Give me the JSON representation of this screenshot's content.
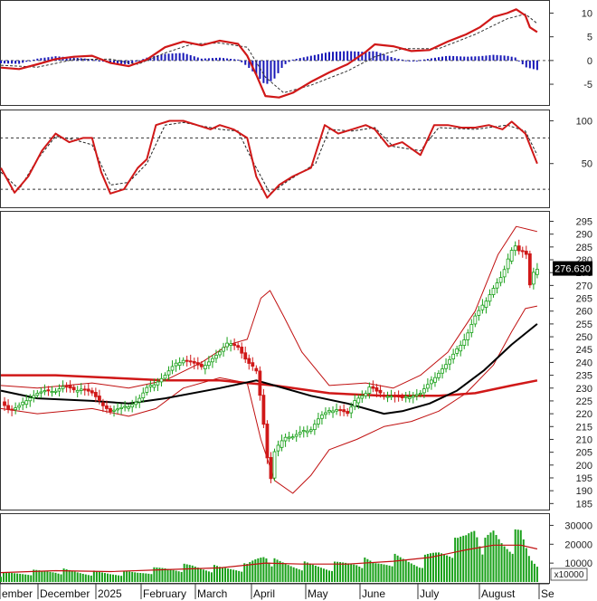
{
  "chart_data": [
    {
      "panel": "macd",
      "type": "line",
      "y_ticks": [
        10,
        5,
        0,
        -5
      ],
      "ylim": [
        -9,
        12
      ],
      "colors": {
        "macd": "#d01818",
        "signal": "#c01010",
        "hist_pos": "#1818b8",
        "hist_neg": "#1818b8"
      },
      "macd": [
        [
          0,
          -1.5
        ],
        [
          20,
          -1.8
        ],
        [
          40,
          -0.8
        ],
        [
          60,
          0.3
        ],
        [
          80,
          0.8
        ],
        [
          100,
          1.0
        ],
        [
          120,
          -0.5
        ],
        [
          140,
          -1.2
        ],
        [
          160,
          0.2
        ],
        [
          180,
          2.8
        ],
        [
          200,
          4.0
        ],
        [
          220,
          3.2
        ],
        [
          240,
          4.2
        ],
        [
          260,
          3.5
        ],
        [
          270,
          1.0
        ],
        [
          280,
          -3.0
        ],
        [
          290,
          -7.5
        ],
        [
          305,
          -7.8
        ],
        [
          320,
          -6.8
        ],
        [
          340,
          -4.5
        ],
        [
          360,
          -2.5
        ],
        [
          380,
          -0.8
        ],
        [
          400,
          1.8
        ],
        [
          410,
          3.4
        ],
        [
          430,
          3.0
        ],
        [
          450,
          2.0
        ],
        [
          470,
          2.2
        ],
        [
          490,
          4.0
        ],
        [
          510,
          5.5
        ],
        [
          525,
          7.0
        ],
        [
          540,
          9.2
        ],
        [
          555,
          10.0
        ],
        [
          565,
          10.8
        ],
        [
          575,
          9.5
        ],
        [
          580,
          7.0
        ],
        [
          588,
          6.0
        ]
      ],
      "signal": [
        [
          0,
          -1.0
        ],
        [
          40,
          -1.4
        ],
        [
          80,
          0.2
        ],
        [
          120,
          0.3
        ],
        [
          150,
          -0.8
        ],
        [
          180,
          1.6
        ],
        [
          210,
          3.5
        ],
        [
          240,
          3.7
        ],
        [
          270,
          2.8
        ],
        [
          290,
          -3.5
        ],
        [
          310,
          -6.8
        ],
        [
          340,
          -5.2
        ],
        [
          380,
          -2.2
        ],
        [
          410,
          0.8
        ],
        [
          440,
          2.5
        ],
        [
          480,
          2.5
        ],
        [
          520,
          5.5
        ],
        [
          555,
          8.8
        ],
        [
          575,
          9.8
        ],
        [
          588,
          7.8
        ]
      ],
      "histogram": [
        [
          0,
          -0.6
        ],
        [
          20,
          -0.7
        ],
        [
          40,
          0.4
        ],
        [
          60,
          0.9
        ],
        [
          80,
          0.6
        ],
        [
          100,
          0.3
        ],
        [
          120,
          -0.6
        ],
        [
          140,
          -0.8
        ],
        [
          160,
          0.6
        ],
        [
          180,
          1.4
        ],
        [
          200,
          1.6
        ],
        [
          220,
          0.4
        ],
        [
          240,
          0.6
        ],
        [
          260,
          0.2
        ],
        [
          270,
          -1.2
        ],
        [
          280,
          -3.0
        ],
        [
          290,
          -5.2
        ],
        [
          300,
          -3.8
        ],
        [
          310,
          -1.0
        ],
        [
          320,
          0.2
        ],
        [
          340,
          1.0
        ],
        [
          360,
          1.8
        ],
        [
          380,
          2.0
        ],
        [
          400,
          1.8
        ],
        [
          410,
          2.0
        ],
        [
          430,
          0.6
        ],
        [
          450,
          -0.2
        ],
        [
          470,
          0.4
        ],
        [
          490,
          1.0
        ],
        [
          510,
          0.8
        ],
        [
          525,
          0.9
        ],
        [
          540,
          1.2
        ],
        [
          555,
          1.0
        ],
        [
          565,
          0.6
        ],
        [
          575,
          -1.4
        ],
        [
          588,
          -2.0
        ]
      ]
    },
    {
      "panel": "stochastic",
      "type": "line",
      "y_ticks": [
        100,
        50
      ],
      "ylim": [
        0,
        110
      ],
      "reference_lines": [
        80,
        20
      ],
      "k": [
        [
          0,
          45
        ],
        [
          15,
          16
        ],
        [
          30,
          35
        ],
        [
          45,
          65
        ],
        [
          60,
          85
        ],
        [
          75,
          75
        ],
        [
          90,
          80
        ],
        [
          100,
          80
        ],
        [
          110,
          40
        ],
        [
          120,
          15
        ],
        [
          135,
          20
        ],
        [
          150,
          45
        ],
        [
          160,
          55
        ],
        [
          170,
          95
        ],
        [
          185,
          100
        ],
        [
          200,
          100
        ],
        [
          215,
          95
        ],
        [
          230,
          90
        ],
        [
          240,
          95
        ],
        [
          255,
          90
        ],
        [
          270,
          80
        ],
        [
          280,
          35
        ],
        [
          292,
          10
        ],
        [
          305,
          25
        ],
        [
          320,
          35
        ],
        [
          340,
          45
        ],
        [
          355,
          95
        ],
        [
          370,
          85
        ],
        [
          385,
          90
        ],
        [
          400,
          95
        ],
        [
          410,
          90
        ],
        [
          425,
          70
        ],
        [
          440,
          75
        ],
        [
          460,
          60
        ],
        [
          475,
          95
        ],
        [
          490,
          95
        ],
        [
          505,
          92
        ],
        [
          520,
          92
        ],
        [
          535,
          95
        ],
        [
          550,
          90
        ],
        [
          560,
          99
        ],
        [
          575,
          85
        ],
        [
          588,
          50
        ]
      ],
      "d": [
        [
          0,
          40
        ],
        [
          20,
          20
        ],
        [
          40,
          55
        ],
        [
          60,
          82
        ],
        [
          80,
          78
        ],
        [
          100,
          72
        ],
        [
          120,
          25
        ],
        [
          140,
          28
        ],
        [
          160,
          50
        ],
        [
          180,
          95
        ],
        [
          200,
          98
        ],
        [
          220,
          94
        ],
        [
          240,
          90
        ],
        [
          260,
          88
        ],
        [
          275,
          55
        ],
        [
          295,
          15
        ],
        [
          315,
          30
        ],
        [
          345,
          50
        ],
        [
          360,
          90
        ],
        [
          385,
          88
        ],
        [
          410,
          92
        ],
        [
          430,
          70
        ],
        [
          460,
          65
        ],
        [
          480,
          92
        ],
        [
          520,
          90
        ],
        [
          555,
          95
        ],
        [
          575,
          88
        ],
        [
          588,
          60
        ]
      ]
    },
    {
      "panel": "price",
      "type": "candlestick",
      "y_ticks": [
        295,
        290,
        285,
        280,
        275,
        270,
        265,
        260,
        255,
        250,
        245,
        240,
        235,
        230,
        225,
        220,
        215,
        210,
        205,
        200,
        195,
        190,
        185
      ],
      "ylim": [
        183,
        298
      ],
      "last_price": "276.630",
      "colors": {
        "up": "#18a018",
        "down": "#d01818",
        "ma_short": "#d01818",
        "ma_mid": "#000000",
        "band": "#c01010"
      },
      "closes": [
        [
          0,
          225
        ],
        [
          10,
          221
        ],
        [
          20,
          223
        ],
        [
          30,
          226
        ],
        [
          40,
          228
        ],
        [
          50,
          229
        ],
        [
          60,
          229
        ],
        [
          70,
          231
        ],
        [
          80,
          229
        ],
        [
          90,
          230
        ],
        [
          100,
          228
        ],
        [
          110,
          224
        ],
        [
          120,
          221
        ],
        [
          130,
          222
        ],
        [
          140,
          223
        ],
        [
          150,
          225
        ],
        [
          160,
          230
        ],
        [
          170,
          232
        ],
        [
          180,
          235
        ],
        [
          190,
          239
        ],
        [
          200,
          241
        ],
        [
          210,
          240
        ],
        [
          220,
          238
        ],
        [
          230,
          241
        ],
        [
          240,
          244
        ],
        [
          250,
          248
        ],
        [
          260,
          246
        ],
        [
          270,
          240
        ],
        [
          280,
          237
        ],
        [
          285,
          225
        ],
        [
          290,
          210
        ],
        [
          295,
          192
        ],
        [
          300,
          205
        ],
        [
          310,
          211
        ],
        [
          320,
          211
        ],
        [
          330,
          213
        ],
        [
          340,
          214
        ],
        [
          350,
          219
        ],
        [
          360,
          221
        ],
        [
          370,
          222
        ],
        [
          380,
          220
        ],
        [
          390,
          226
        ],
        [
          400,
          228
        ],
        [
          405,
          231
        ],
        [
          410,
          229
        ],
        [
          420,
          227
        ],
        [
          430,
          227
        ],
        [
          440,
          226
        ],
        [
          450,
          227
        ],
        [
          460,
          228
        ],
        [
          470,
          232
        ],
        [
          480,
          236
        ],
        [
          490,
          240
        ],
        [
          500,
          245
        ],
        [
          510,
          250
        ],
        [
          520,
          258
        ],
        [
          530,
          263
        ],
        [
          540,
          269
        ],
        [
          550,
          274
        ],
        [
          560,
          284
        ],
        [
          565,
          286
        ],
        [
          570,
          282
        ],
        [
          575,
          285
        ],
        [
          580,
          270
        ],
        [
          585,
          276
        ],
        [
          588,
          276.63
        ]
      ],
      "ma_short": [
        [
          0,
          235
        ],
        [
          60,
          235
        ],
        [
          120,
          234
        ],
        [
          180,
          233
        ],
        [
          240,
          233
        ],
        [
          300,
          231
        ],
        [
          360,
          228
        ],
        [
          420,
          227
        ],
        [
          480,
          227
        ],
        [
          520,
          228
        ],
        [
          560,
          231
        ],
        [
          588,
          233
        ]
      ],
      "ma_mid": [
        [
          0,
          229
        ],
        [
          40,
          226
        ],
        [
          100,
          225
        ],
        [
          140,
          224
        ],
        [
          180,
          226
        ],
        [
          240,
          230
        ],
        [
          280,
          233
        ],
        [
          300,
          231
        ],
        [
          340,
          227
        ],
        [
          380,
          224
        ],
        [
          420,
          220
        ],
        [
          440,
          221
        ],
        [
          470,
          224
        ],
        [
          500,
          229
        ],
        [
          530,
          237
        ],
        [
          560,
          247
        ],
        [
          588,
          255
        ]
      ],
      "band_upper": [
        [
          0,
          231
        ],
        [
          40,
          230
        ],
        [
          100,
          232
        ],
        [
          140,
          230
        ],
        [
          180,
          233
        ],
        [
          220,
          240
        ],
        [
          250,
          247
        ],
        [
          270,
          249
        ],
        [
          285,
          265
        ],
        [
          295,
          268
        ],
        [
          310,
          258
        ],
        [
          330,
          244
        ],
        [
          360,
          231
        ],
        [
          400,
          232
        ],
        [
          430,
          230
        ],
        [
          460,
          235
        ],
        [
          490,
          244
        ],
        [
          520,
          260
        ],
        [
          545,
          282
        ],
        [
          565,
          293
        ],
        [
          588,
          291
        ]
      ],
      "band_lower": [
        [
          0,
          222
        ],
        [
          40,
          220
        ],
        [
          100,
          222
        ],
        [
          140,
          219
        ],
        [
          170,
          222
        ],
        [
          200,
          230
        ],
        [
          240,
          234
        ],
        [
          270,
          232
        ],
        [
          285,
          210
        ],
        [
          300,
          194
        ],
        [
          320,
          189
        ],
        [
          340,
          196
        ],
        [
          360,
          206
        ],
        [
          390,
          210
        ],
        [
          420,
          215
        ],
        [
          450,
          217
        ],
        [
          480,
          221
        ],
        [
          510,
          228
        ],
        [
          540,
          239
        ],
        [
          560,
          252
        ],
        [
          575,
          261
        ],
        [
          588,
          262
        ]
      ]
    },
    {
      "panel": "volume",
      "type": "bar",
      "unit": "x10000",
      "y_ticks": [
        30000,
        20000,
        10000
      ],
      "ylim": [
        0,
        35000
      ],
      "colors": {
        "bars": "#18a018",
        "ma": "#c01010"
      },
      "volumes": [
        [
          0,
          4000
        ],
        [
          30,
          5000
        ],
        [
          60,
          6000
        ],
        [
          90,
          5000
        ],
        [
          120,
          4500
        ],
        [
          150,
          5000
        ],
        [
          180,
          7000
        ],
        [
          210,
          8000
        ],
        [
          240,
          7000
        ],
        [
          270,
          8000
        ],
        [
          285,
          14000
        ],
        [
          290,
          16000
        ],
        [
          300,
          10000
        ],
        [
          320,
          9000
        ],
        [
          360,
          8000
        ],
        [
          390,
          11000
        ],
        [
          410,
          9500
        ],
        [
          430,
          12000
        ],
        [
          460,
          10000
        ],
        [
          480,
          16000
        ],
        [
          500,
          19000
        ],
        [
          510,
          24000
        ],
        [
          520,
          32000
        ],
        [
          530,
          18000
        ],
        [
          540,
          25000
        ],
        [
          550,
          22000
        ],
        [
          560,
          21000
        ],
        [
          570,
          24000
        ],
        [
          580,
          13000
        ],
        [
          588,
          10000
        ]
      ],
      "ma": [
        [
          0,
          5000
        ],
        [
          60,
          6000
        ],
        [
          120,
          5500
        ],
        [
          180,
          6500
        ],
        [
          240,
          7500
        ],
        [
          290,
          10000
        ],
        [
          330,
          9500
        ],
        [
          380,
          9500
        ],
        [
          430,
          11000
        ],
        [
          470,
          13000
        ],
        [
          510,
          17000
        ],
        [
          540,
          19500
        ],
        [
          570,
          19500
        ],
        [
          588,
          17500
        ]
      ]
    }
  ],
  "x_axis": {
    "labels": [
      "ember",
      "December",
      "2025",
      "February",
      "March",
      "April",
      "May",
      "June",
      "July",
      "August",
      "Se"
    ]
  }
}
